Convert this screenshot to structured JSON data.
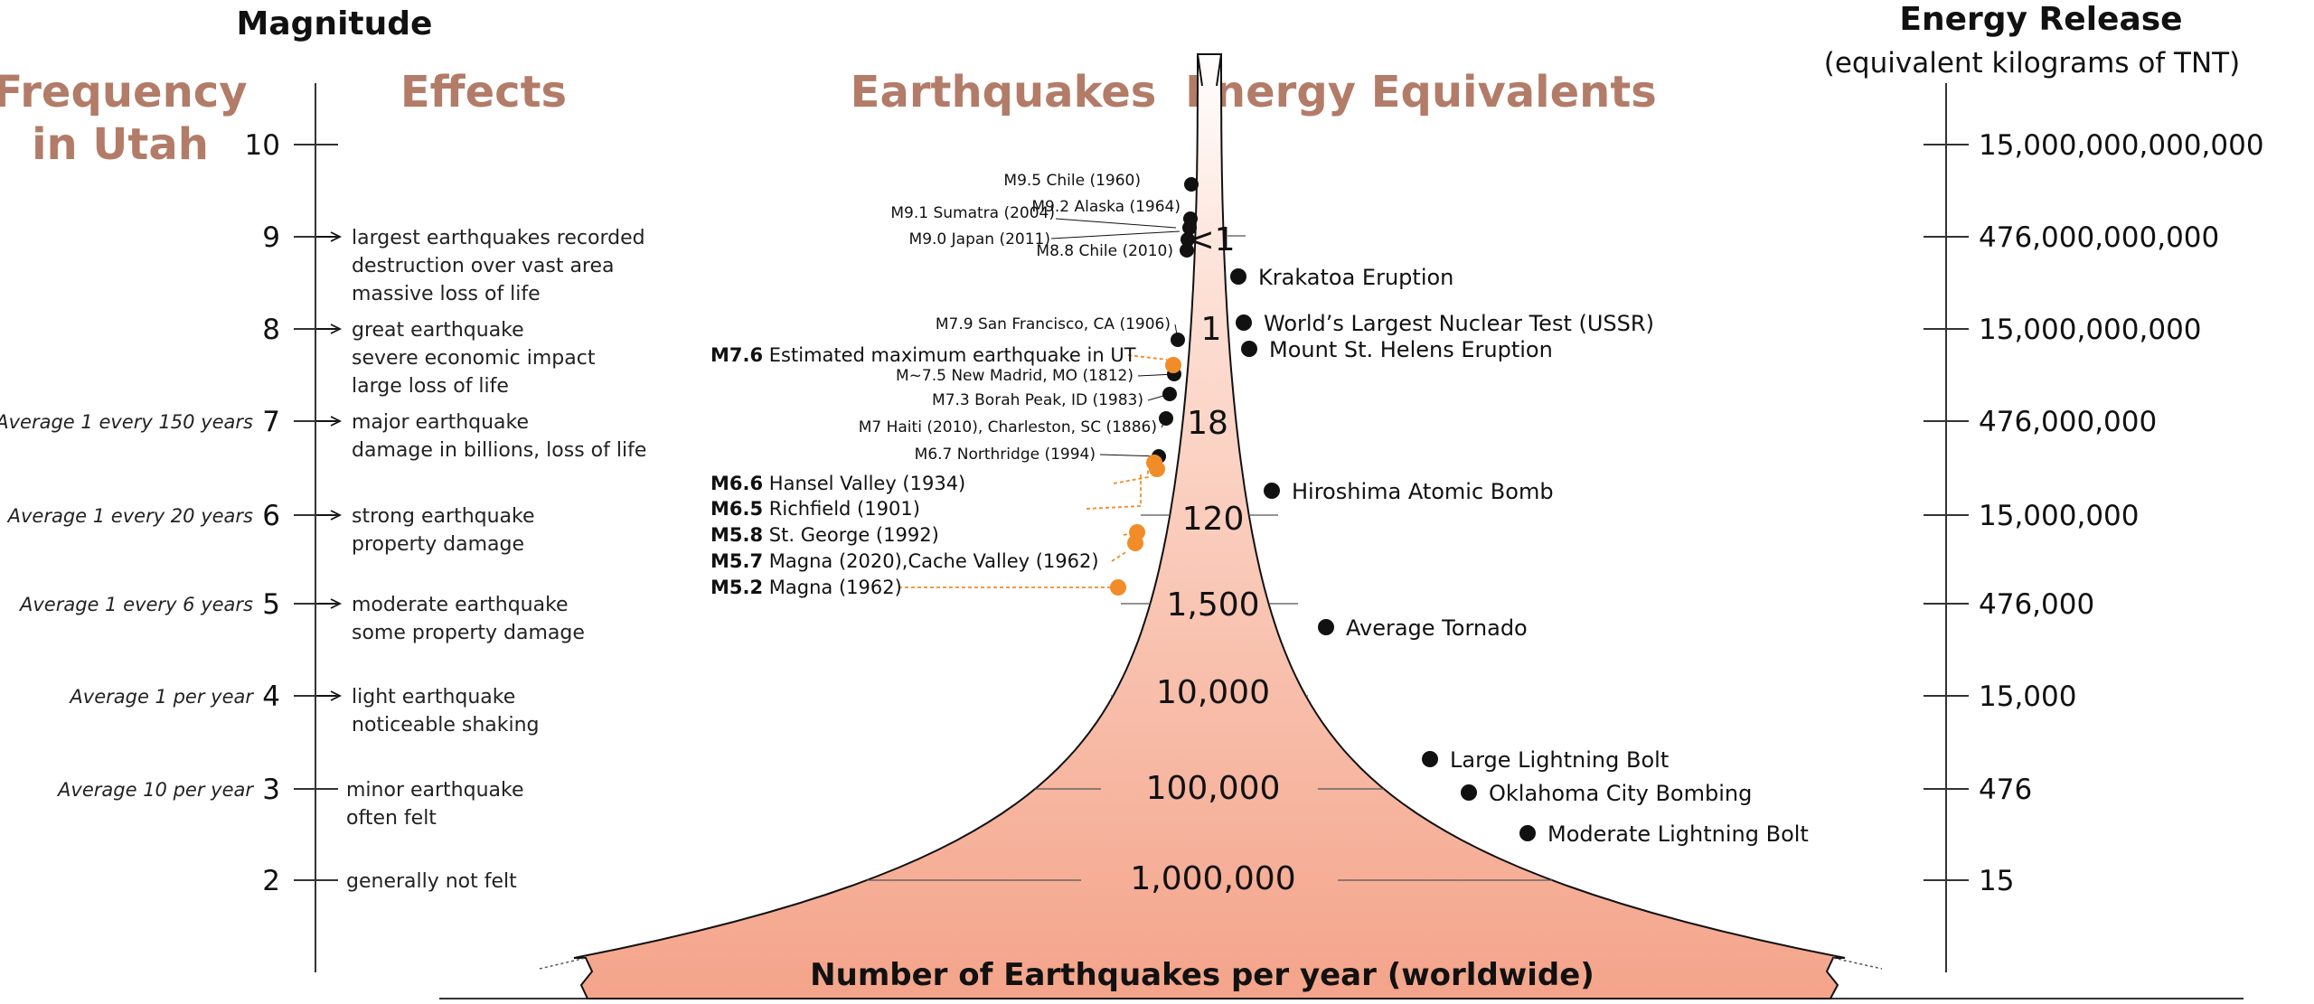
{
  "headers": {
    "magnitude": "Magnitude",
    "frequency_line1": "Frequency",
    "frequency_line2": "in Utah",
    "effects": "Effects",
    "earthquakes": "Earthquakes",
    "energy_equivalents": "Energy Equivalents",
    "energy_release": "Energy Release",
    "energy_release_sub": "(equivalent kilograms of TNT)"
  },
  "colors": {
    "heading": "#b27c68",
    "utah_quake": "#f28c28",
    "world_quake": "#111111",
    "cone_fill": "#f4a48a"
  },
  "magnitudes": [
    "10",
    "9",
    "8",
    "7",
    "6",
    "5",
    "4",
    "3",
    "2"
  ],
  "frequency": [
    {
      "magnitude": "7",
      "text": "Average 1 every 150 years"
    },
    {
      "magnitude": "6",
      "text": "Average 1 every 20 years"
    },
    {
      "magnitude": "5",
      "text": "Average 1 every 6 years"
    },
    {
      "magnitude": "4",
      "text": "Average 1 per year"
    },
    {
      "magnitude": "3",
      "text": "Average 10 per year"
    }
  ],
  "effects": [
    {
      "magnitude": "9",
      "lines": [
        "largest earthquakes recorded",
        "destruction over vast area",
        "massive loss of life"
      ]
    },
    {
      "magnitude": "8",
      "lines": [
        "great earthquake",
        "severe economic impact",
        "large loss of life"
      ]
    },
    {
      "magnitude": "7",
      "lines": [
        "major earthquake",
        "damage in billions, loss of life"
      ]
    },
    {
      "magnitude": "6",
      "lines": [
        "strong earthquake",
        "property damage"
      ]
    },
    {
      "magnitude": "5",
      "lines": [
        "moderate earthquake",
        "some property damage"
      ]
    },
    {
      "magnitude": "4",
      "lines": [
        "light earthquake",
        "noticeable shaking"
      ]
    },
    {
      "magnitude": "3",
      "lines": [
        "minor earthquake",
        "often felt"
      ]
    },
    {
      "magnitude": "2",
      "lines": [
        "generally not felt"
      ]
    }
  ],
  "world_earthquakes": [
    {
      "label": "M9.5 Chile (1960)",
      "magnitude": 9.5
    },
    {
      "label": "M9.2 Alaska (1964)",
      "magnitude": 9.2
    },
    {
      "label": "M9.1 Sumatra (2004)",
      "magnitude": 9.1
    },
    {
      "label": "M9.0 Japan (2011)",
      "magnitude": 9.0
    },
    {
      "label": "M8.8 Chile (2010)",
      "magnitude": 8.8
    },
    {
      "label": "M7.9 San Francisco, CA (1906)",
      "magnitude": 7.9
    },
    {
      "label": "M~7.5 New Madrid, MO (1812)",
      "magnitude": 7.5
    },
    {
      "label": "M7.3 Borah Peak, ID (1983)",
      "magnitude": 7.3
    },
    {
      "label": "M7 Haiti (2010), Charleston, SC (1886)",
      "magnitude": 7.0
    },
    {
      "label": "M6.7 Northridge (1994)",
      "magnitude": 6.7
    }
  ],
  "utah_earthquakes": [
    {
      "bold": "M7.6",
      "text": "Estimated maximum earthquake in UT",
      "magnitude": 7.6
    },
    {
      "bold": "M6.6",
      "text": "Hansel Valley (1934)",
      "magnitude": 6.6
    },
    {
      "bold": "M6.5",
      "text": "Richfield (1901)",
      "magnitude": 6.5
    },
    {
      "bold": "M5.8",
      "text": "St. George (1992)",
      "magnitude": 5.8
    },
    {
      "bold": "M5.7",
      "text": "Magna (2020),Cache Valley (1962)",
      "magnitude": 5.7
    },
    {
      "bold": "M5.2",
      "text": "Magna (1962)",
      "magnitude": 5.2
    }
  ],
  "counts_per_year": [
    {
      "magnitude": "9",
      "count": "<1"
    },
    {
      "magnitude": "8",
      "count": "1"
    },
    {
      "magnitude": "7",
      "count": "18"
    },
    {
      "magnitude": "6",
      "count": "120"
    },
    {
      "magnitude": "5",
      "count": "1,500"
    },
    {
      "magnitude": "4",
      "count": "10,000"
    },
    {
      "magnitude": "3",
      "count": "100,000"
    },
    {
      "magnitude": "2",
      "count": "1,000,000"
    }
  ],
  "energy_equivalents": [
    {
      "label": "Krakatoa Eruption",
      "magnitude": 8.6
    },
    {
      "label": "World’s Largest Nuclear Test (USSR)",
      "magnitude": 8.1
    },
    {
      "label": "Mount St. Helens Eruption",
      "magnitude": 7.8
    },
    {
      "label": "Hiroshima Atomic Bomb",
      "magnitude": 6.3
    },
    {
      "label": "Average Tornado",
      "magnitude": 4.8
    },
    {
      "label": "Large Lightning Bolt",
      "magnitude": 3.3
    },
    {
      "label": "Oklahoma City Bombing",
      "magnitude": 2.95
    },
    {
      "label": "Moderate Lightning Bolt",
      "magnitude": 2.5
    }
  ],
  "energy_release": [
    {
      "magnitude": "10",
      "value": "15,000,000,000,000"
    },
    {
      "magnitude": "9",
      "value": "476,000,000,000"
    },
    {
      "magnitude": "8",
      "value": "15,000,000,000"
    },
    {
      "magnitude": "7",
      "value": "476,000,000"
    },
    {
      "magnitude": "6",
      "value": "15,000,000"
    },
    {
      "magnitude": "5",
      "value": "476,000"
    },
    {
      "magnitude": "4",
      "value": "15,000"
    },
    {
      "magnitude": "3",
      "value": "476"
    },
    {
      "magnitude": "2",
      "value": "15"
    }
  ],
  "bottom_label": "Number of Earthquakes per year (worldwide)"
}
